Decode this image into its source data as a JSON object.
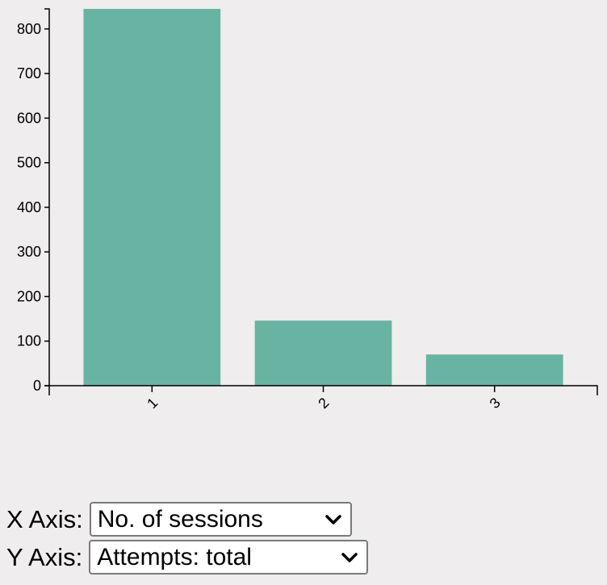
{
  "chart_data": {
    "type": "bar",
    "categories": [
      "1",
      "2",
      "3"
    ],
    "values": [
      845,
      146,
      70
    ],
    "y_ticks": [
      0,
      100,
      200,
      300,
      400,
      500,
      600,
      700,
      800
    ],
    "ylim": [
      0,
      845
    ],
    "bar_color": "#69b3a2",
    "grid": false
  },
  "controls": {
    "x_axis": {
      "label": "X Axis:",
      "selected": "No. of sessions"
    },
    "y_axis": {
      "label": "Y Axis:",
      "selected": "Attempts: total"
    }
  }
}
